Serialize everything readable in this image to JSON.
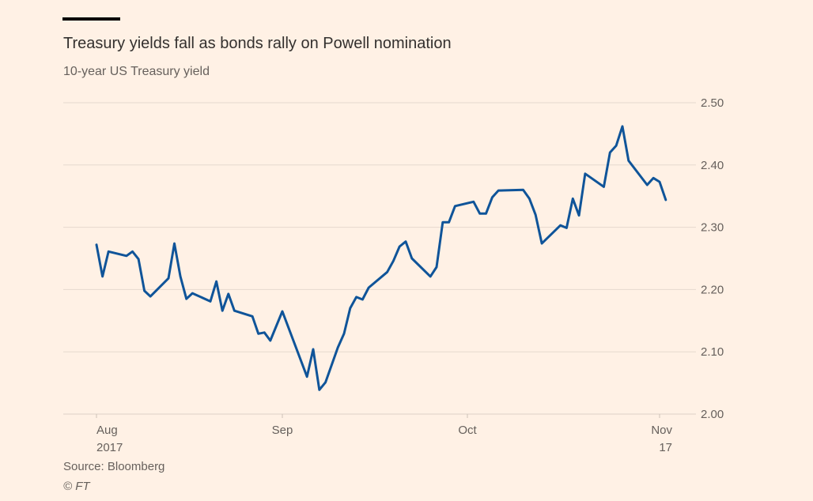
{
  "header": {
    "title": "Treasury yields fall as bonds rally on Powell nomination",
    "subtitle": "10-year US Treasury yield"
  },
  "footer": {
    "source": "Source: Bloomberg",
    "copyright": "© FT"
  },
  "colors": {
    "background": "#fff1e5",
    "line": "#0f5499",
    "grid": "#e6d9ce",
    "text": "#66605c"
  },
  "chart_data": {
    "type": "line",
    "title": "Treasury yields fall as bonds rally on Powell nomination",
    "subtitle": "10-year US Treasury yield",
    "xlabel": "",
    "ylabel": "",
    "ylim": [
      2.0,
      2.5
    ],
    "yticks": [
      "2.50",
      "2.40",
      "2.30",
      "2.20",
      "2.10",
      "2.00"
    ],
    "ytick_values": [
      2.5,
      2.4,
      2.3,
      2.2,
      2.1,
      2.0
    ],
    "yaxis_side": "right",
    "grid": true,
    "x_unit": "days since 2017-08-01",
    "xlim": [
      0,
      95
    ],
    "xticks": [
      {
        "day": 0,
        "label": "Aug",
        "sublabel": "2017"
      },
      {
        "day": 31,
        "label": "Sep",
        "sublabel": ""
      },
      {
        "day": 61,
        "label": "Oct",
        "sublabel": ""
      },
      {
        "day": 92,
        "label": "Nov",
        "sublabel": "17"
      }
    ],
    "series": [
      {
        "name": "10-year US Treasury yield",
        "x": [
          0,
          1,
          2,
          5,
          6,
          7,
          8,
          9,
          12,
          13,
          14,
          15,
          16,
          19,
          20,
          21,
          22,
          23,
          26,
          27,
          28,
          29,
          31,
          35,
          36,
          37,
          38,
          40,
          41,
          42,
          43,
          44,
          45,
          48,
          49,
          50,
          51,
          52,
          55,
          56,
          57,
          58,
          59,
          62,
          63,
          64,
          65,
          66,
          70,
          71,
          72,
          73,
          76,
          77,
          78,
          79,
          80,
          83,
          84,
          85,
          86,
          87,
          90,
          91,
          92,
          93
        ],
        "values": [
          2.272,
          2.221,
          2.261,
          2.254,
          2.261,
          2.249,
          2.198,
          2.189,
          2.218,
          2.274,
          2.221,
          2.185,
          2.194,
          2.181,
          2.213,
          2.166,
          2.193,
          2.166,
          2.157,
          2.129,
          2.131,
          2.118,
          2.165,
          2.06,
          2.104,
          2.039,
          2.051,
          2.107,
          2.129,
          2.17,
          2.188,
          2.184,
          2.203,
          2.228,
          2.246,
          2.269,
          2.277,
          2.25,
          2.221,
          2.236,
          2.308,
          2.308,
          2.334,
          2.341,
          2.322,
          2.322,
          2.348,
          2.359,
          2.36,
          2.346,
          2.32,
          2.274,
          2.303,
          2.299,
          2.346,
          2.319,
          2.386,
          2.365,
          2.42,
          2.431,
          2.462,
          2.407,
          2.368,
          2.379,
          2.373,
          2.344
        ]
      }
    ]
  }
}
